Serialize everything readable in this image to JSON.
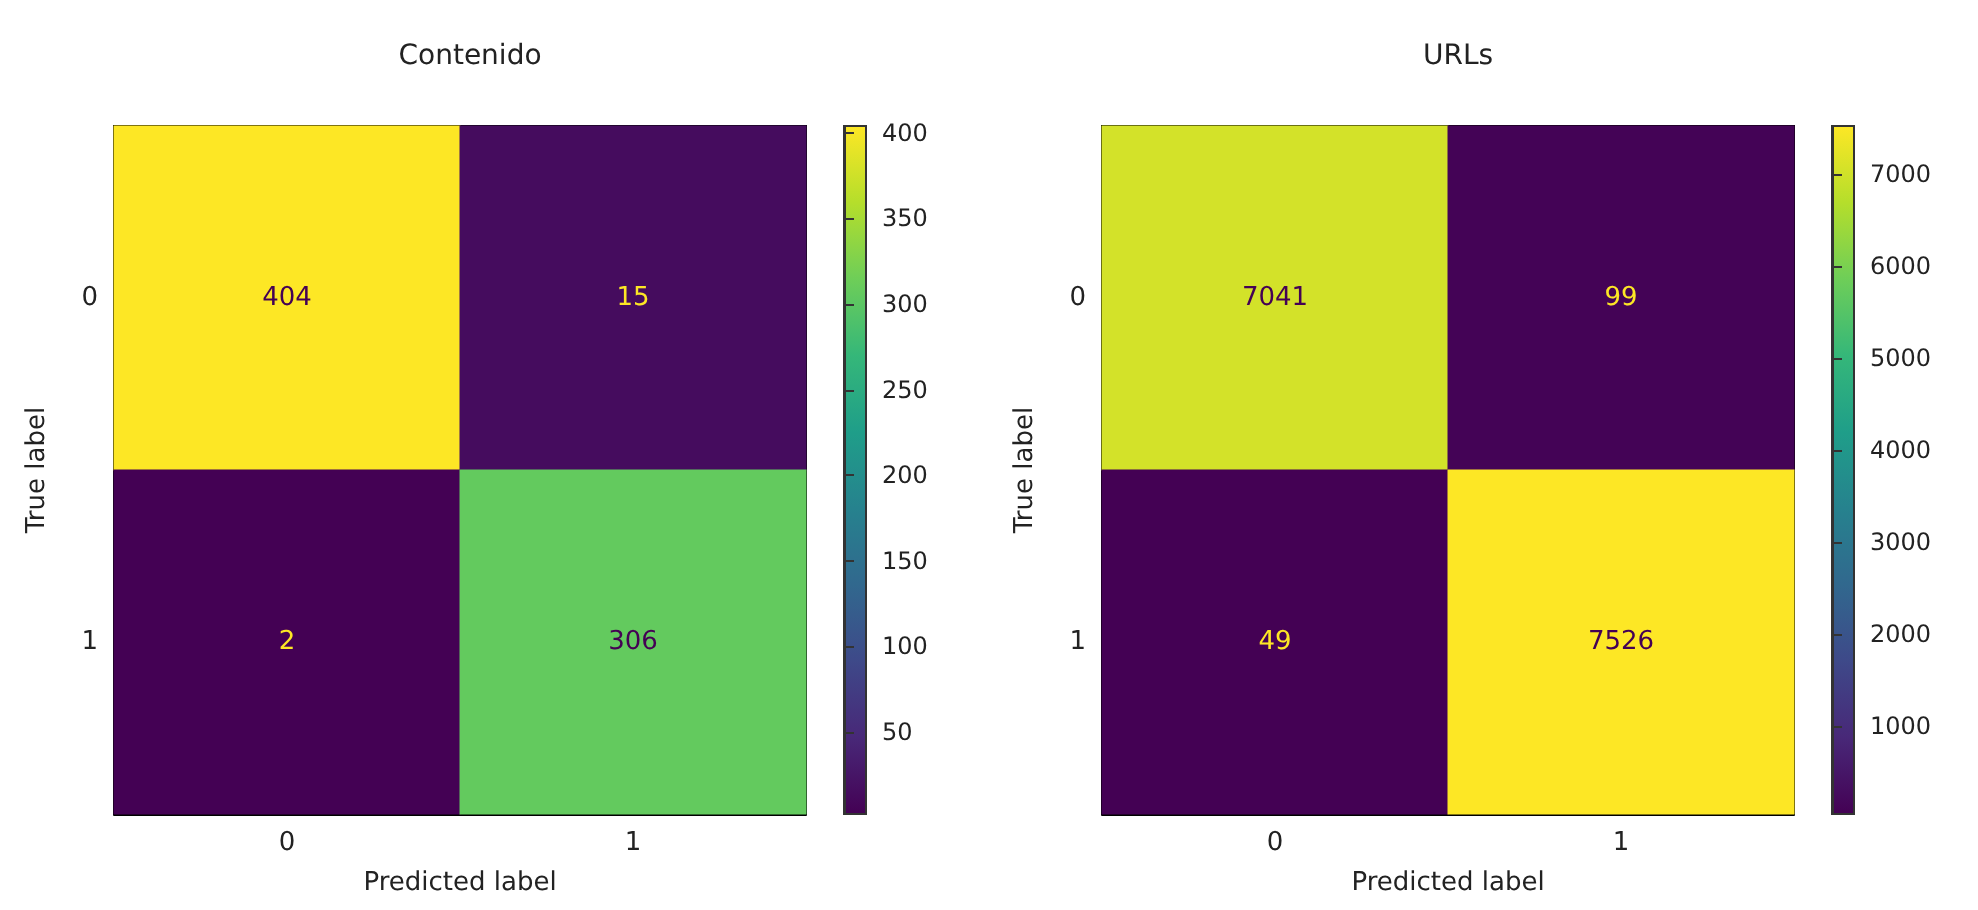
{
  "chart_data": [
    {
      "type": "heatmap",
      "title": "Contenido",
      "xlabel": "Predicted label",
      "ylabel": "True label",
      "categories": [
        "0",
        "1"
      ],
      "y_categories": [
        "0",
        "1"
      ],
      "cells": [
        [
          404,
          15
        ],
        [
          2,
          306
        ]
      ],
      "clim": [
        2,
        404
      ],
      "cticks": [
        50,
        100,
        150,
        200,
        250,
        300,
        350,
        400
      ],
      "data_labels": true
    },
    {
      "type": "heatmap",
      "title": "URLs",
      "xlabel": "Predicted label",
      "ylabel": "True label",
      "categories": [
        "0",
        "1"
      ],
      "y_categories": [
        "0",
        "1"
      ],
      "cells": [
        [
          7041,
          99
        ],
        [
          49,
          7526
        ]
      ],
      "clim": [
        49,
        7526
      ],
      "cticks": [
        1000,
        2000,
        3000,
        4000,
        5000,
        6000,
        7000
      ],
      "data_labels": true
    }
  ]
}
